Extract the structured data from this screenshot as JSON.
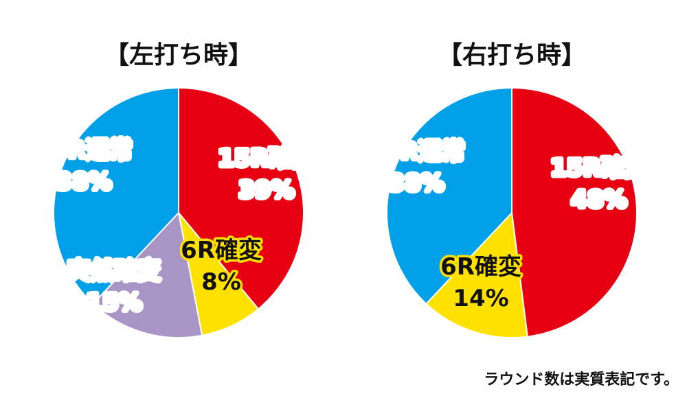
{
  "chart_data": [
    {
      "type": "pie",
      "title": "【左打ち時】",
      "slices": [
        {
          "label": "15R確変",
          "value": 39,
          "value_label": "39%",
          "color": "#e60012",
          "label_fill": "#ffffff",
          "label_stroke": "#e60012"
        },
        {
          "label": "6R確変",
          "value": 8,
          "value_label": "8%",
          "color": "#ffe100",
          "label_fill": "#111111",
          "label_stroke": "#ffe100"
        },
        {
          "label": "突然確変",
          "value": 15,
          "value_label": "15%",
          "color": "#a895c5",
          "label_fill": "#ffffff",
          "label_stroke": "#a895c5"
        },
        {
          "label": "10R通常",
          "value": 38,
          "value_label": "38%",
          "color": "#00a0e9",
          "label_fill": "#ffffff",
          "label_stroke": "#00a0e9"
        }
      ]
    },
    {
      "type": "pie",
      "title": "【右打ち時】",
      "slices": [
        {
          "label": "15R確変",
          "value": 48,
          "value_label": "48%",
          "color": "#e60012",
          "label_fill": "#ffffff",
          "label_stroke": "#e60012"
        },
        {
          "label": "6R確変",
          "value": 14,
          "value_label": "14%",
          "color": "#ffe100",
          "label_fill": "#111111",
          "label_stroke": "#ffe100"
        },
        {
          "label": "10R通常",
          "value": 38,
          "value_label": "38%",
          "color": "#00a0e9",
          "label_fill": "#ffffff",
          "label_stroke": "#00a0e9"
        }
      ]
    }
  ],
  "note": "ラウンド数は実質表記です。"
}
